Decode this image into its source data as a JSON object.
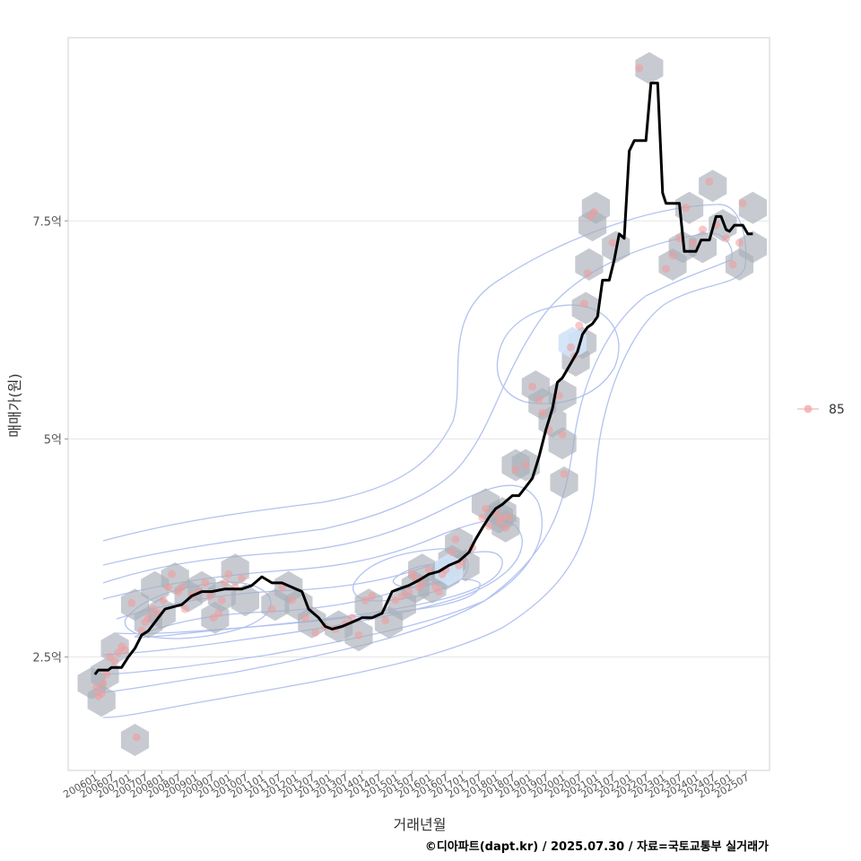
{
  "chart_data": {
    "type": "scatter",
    "xlabel": "거래년월",
    "ylabel": "매매가(원)",
    "caption": "©디아파트(dapt.kr) / 2025.07.30 / 자료=국토교통부 실거래가",
    "legend": {
      "position": "right",
      "entries": [
        "85"
      ]
    },
    "ylim": [
      1.2,
      9.6
    ],
    "xlim": [
      2005.2,
      2026.2
    ],
    "y_ticks": [
      {
        "value": 2.5,
        "label": "2.5억"
      },
      {
        "value": 5.0,
        "label": "5억"
      },
      {
        "value": 7.5,
        "label": "7.5억"
      }
    ],
    "x_ticks": [
      "200601",
      "200607",
      "200701",
      "200707",
      "200801",
      "200807",
      "200901",
      "200907",
      "201001",
      "201007",
      "201101",
      "201107",
      "201201",
      "201207",
      "201301",
      "201307",
      "201401",
      "201407",
      "201501",
      "201507",
      "201601",
      "201607",
      "201701",
      "201707",
      "201801",
      "201807",
      "201901",
      "201907",
      "202001",
      "202007",
      "202101",
      "202107",
      "202201",
      "202207",
      "202301",
      "202307",
      "202401",
      "202407",
      "202501",
      "202507"
    ],
    "grid": true,
    "series": [
      {
        "name": "85",
        "kind": "points",
        "points": [
          [
            2006.05,
            2.15
          ],
          [
            2006.1,
            2.05
          ],
          [
            2006.2,
            2.08
          ],
          [
            2006.25,
            2.2
          ],
          [
            2006.35,
            2.3
          ],
          [
            2006.45,
            2.5
          ],
          [
            2006.6,
            2.45
          ],
          [
            2006.7,
            2.55
          ],
          [
            2006.8,
            2.62
          ],
          [
            2006.9,
            2.58
          ],
          [
            2007.1,
            3.12
          ],
          [
            2007.25,
            1.58
          ],
          [
            2007.4,
            2.8
          ],
          [
            2007.5,
            2.9
          ],
          [
            2007.6,
            2.95
          ],
          [
            2007.75,
            3.05
          ],
          [
            2007.9,
            3.0
          ],
          [
            2008.05,
            3.15
          ],
          [
            2008.2,
            3.3
          ],
          [
            2008.3,
            3.45
          ],
          [
            2008.5,
            3.25
          ],
          [
            2008.6,
            3.3
          ],
          [
            2008.7,
            3.05
          ],
          [
            2008.9,
            3.2
          ],
          [
            2009.1,
            3.25
          ],
          [
            2009.3,
            3.35
          ],
          [
            2009.45,
            3.2
          ],
          [
            2009.55,
            2.95
          ],
          [
            2009.7,
            3.0
          ],
          [
            2009.8,
            3.15
          ],
          [
            2009.9,
            3.35
          ],
          [
            2010.0,
            3.45
          ],
          [
            2010.2,
            3.3
          ],
          [
            2010.4,
            3.4
          ],
          [
            2011.3,
            3.05
          ],
          [
            2011.6,
            3.3
          ],
          [
            2011.9,
            3.15
          ],
          [
            2012.3,
            2.95
          ],
          [
            2012.6,
            2.78
          ],
          [
            2012.9,
            2.85
          ],
          [
            2013.2,
            2.82
          ],
          [
            2013.5,
            2.88
          ],
          [
            2013.7,
            2.95
          ],
          [
            2013.9,
            2.75
          ],
          [
            2014.1,
            3.15
          ],
          [
            2014.3,
            3.2
          ],
          [
            2014.7,
            2.92
          ],
          [
            2015.0,
            3.15
          ],
          [
            2015.2,
            3.2
          ],
          [
            2015.4,
            3.25
          ],
          [
            2015.5,
            3.45
          ],
          [
            2015.6,
            3.4
          ],
          [
            2015.7,
            3.3
          ],
          [
            2015.8,
            3.35
          ],
          [
            2016.0,
            3.5
          ],
          [
            2016.2,
            3.3
          ],
          [
            2016.3,
            3.25
          ],
          [
            2016.4,
            3.45
          ],
          [
            2016.5,
            3.5
          ],
          [
            2016.7,
            3.7
          ],
          [
            2016.8,
            3.85
          ],
          [
            2016.9,
            3.55
          ],
          [
            2017.0,
            3.6
          ],
          [
            2017.3,
            3.75
          ],
          [
            2017.6,
            4.1
          ],
          [
            2017.7,
            4.2
          ],
          [
            2017.8,
            4.0
          ],
          [
            2018.0,
            4.15
          ],
          [
            2018.1,
            4.05
          ],
          [
            2018.2,
            4.1
          ],
          [
            2018.3,
            3.98
          ],
          [
            2018.4,
            4.1
          ],
          [
            2018.6,
            4.65
          ],
          [
            2018.9,
            4.7
          ],
          [
            2019.1,
            5.6
          ],
          [
            2019.3,
            5.45
          ],
          [
            2019.4,
            5.3
          ],
          [
            2019.6,
            5.1
          ],
          [
            2019.9,
            5.5
          ],
          [
            2020.0,
            5.05
          ],
          [
            2020.05,
            4.6
          ],
          [
            2020.25,
            6.05
          ],
          [
            2020.35,
            5.95
          ],
          [
            2020.5,
            6.3
          ],
          [
            2020.65,
            6.55
          ],
          [
            2020.75,
            6.9
          ],
          [
            2020.85,
            7.55
          ],
          [
            2020.95,
            7.6
          ],
          [
            2021.5,
            7.25
          ],
          [
            2022.3,
            9.25
          ],
          [
            2023.1,
            6.95
          ],
          [
            2023.3,
            7.1
          ],
          [
            2023.5,
            7.3
          ],
          [
            2023.7,
            7.65
          ],
          [
            2023.9,
            7.25
          ],
          [
            2024.2,
            7.4
          ],
          [
            2024.4,
            7.95
          ],
          [
            2024.6,
            7.45
          ],
          [
            2024.9,
            7.3
          ],
          [
            2025.1,
            7.0
          ],
          [
            2025.3,
            7.25
          ],
          [
            2025.4,
            7.7
          ]
        ]
      },
      {
        "name": "moving-average",
        "kind": "line",
        "points": [
          [
            2006.0,
            2.3
          ],
          [
            2006.1,
            2.35
          ],
          [
            2006.4,
            2.35
          ],
          [
            2006.5,
            2.38
          ],
          [
            2006.8,
            2.38
          ],
          [
            2007.0,
            2.5
          ],
          [
            2007.2,
            2.6
          ],
          [
            2007.4,
            2.75
          ],
          [
            2007.6,
            2.8
          ],
          [
            2007.9,
            2.95
          ],
          [
            2008.1,
            3.05
          ],
          [
            2008.4,
            3.08
          ],
          [
            2008.6,
            3.1
          ],
          [
            2008.9,
            3.2
          ],
          [
            2009.2,
            3.25
          ],
          [
            2009.5,
            3.25
          ],
          [
            2009.9,
            3.28
          ],
          [
            2010.2,
            3.28
          ],
          [
            2010.4,
            3.28
          ],
          [
            2010.7,
            3.32
          ],
          [
            2011.0,
            3.42
          ],
          [
            2011.3,
            3.35
          ],
          [
            2011.6,
            3.35
          ],
          [
            2011.9,
            3.3
          ],
          [
            2012.2,
            3.25
          ],
          [
            2012.4,
            3.05
          ],
          [
            2012.7,
            2.95
          ],
          [
            2012.9,
            2.85
          ],
          [
            2013.1,
            2.82
          ],
          [
            2013.4,
            2.85
          ],
          [
            2013.7,
            2.9
          ],
          [
            2014.0,
            2.95
          ],
          [
            2014.3,
            2.95
          ],
          [
            2014.6,
            3.0
          ],
          [
            2014.9,
            3.25
          ],
          [
            2015.1,
            3.28
          ],
          [
            2015.4,
            3.32
          ],
          [
            2015.7,
            3.38
          ],
          [
            2016.0,
            3.45
          ],
          [
            2016.3,
            3.48
          ],
          [
            2016.6,
            3.55
          ],
          [
            2016.9,
            3.6
          ],
          [
            2017.2,
            3.7
          ],
          [
            2017.4,
            3.85
          ],
          [
            2017.6,
            3.98
          ],
          [
            2017.8,
            4.1
          ],
          [
            2018.0,
            4.2
          ],
          [
            2018.2,
            4.25
          ],
          [
            2018.5,
            4.35
          ],
          [
            2018.7,
            4.35
          ],
          [
            2018.9,
            4.45
          ],
          [
            2019.1,
            4.55
          ],
          [
            2019.3,
            4.8
          ],
          [
            2019.5,
            5.1
          ],
          [
            2019.7,
            5.35
          ],
          [
            2019.85,
            5.65
          ],
          [
            2020.0,
            5.7
          ],
          [
            2020.15,
            5.8
          ],
          [
            2020.3,
            5.9
          ],
          [
            2020.45,
            6.0
          ],
          [
            2020.6,
            6.2
          ],
          [
            2020.75,
            6.28
          ],
          [
            2020.9,
            6.32
          ],
          [
            2021.05,
            6.4
          ],
          [
            2021.2,
            6.82
          ],
          [
            2021.4,
            6.82
          ],
          [
            2021.55,
            7.05
          ],
          [
            2021.7,
            7.35
          ],
          [
            2021.85,
            7.3
          ],
          [
            2022.0,
            8.3
          ],
          [
            2022.15,
            8.42
          ],
          [
            2022.5,
            8.42
          ],
          [
            2022.65,
            9.08
          ],
          [
            2022.85,
            9.08
          ],
          [
            2023.0,
            7.82
          ],
          [
            2023.1,
            7.7
          ],
          [
            2023.5,
            7.7
          ],
          [
            2023.65,
            7.15
          ],
          [
            2024.0,
            7.15
          ],
          [
            2024.15,
            7.28
          ],
          [
            2024.4,
            7.28
          ],
          [
            2024.6,
            7.55
          ],
          [
            2024.75,
            7.55
          ],
          [
            2024.9,
            7.4
          ],
          [
            2025.0,
            7.38
          ],
          [
            2025.15,
            7.45
          ],
          [
            2025.4,
            7.45
          ],
          [
            2025.55,
            7.35
          ],
          [
            2025.7,
            7.35
          ]
        ]
      }
    ],
    "hexbins": [
      [
        2005.9,
        2.2
      ],
      [
        2006.3,
        2.3
      ],
      [
        2006.6,
        2.6
      ],
      [
        2006.2,
        2.0
      ],
      [
        2007.2,
        3.1
      ],
      [
        2007.6,
        2.9
      ],
      [
        2008.0,
        3.0
      ],
      [
        2007.8,
        3.3
      ],
      [
        2008.4,
        3.4
      ],
      [
        2008.8,
        3.2
      ],
      [
        2009.2,
        3.3
      ],
      [
        2009.6,
        2.95
      ],
      [
        2009.8,
        3.2
      ],
      [
        2010.2,
        3.5
      ],
      [
        2010.5,
        3.15
      ],
      [
        2011.4,
        3.1
      ],
      [
        2011.8,
        3.3
      ],
      [
        2012.1,
        3.1
      ],
      [
        2012.5,
        2.9
      ],
      [
        2013.3,
        2.85
      ],
      [
        2013.9,
        2.75
      ],
      [
        2014.2,
        3.1
      ],
      [
        2014.8,
        2.9
      ],
      [
        2015.2,
        3.1
      ],
      [
        2015.6,
        3.3
      ],
      [
        2015.8,
        3.5
      ],
      [
        2016.1,
        3.3
      ],
      [
        2016.5,
        3.45
      ],
      [
        2016.7,
        3.6
      ],
      [
        2016.9,
        3.8
      ],
      [
        2017.1,
        3.55
      ],
      [
        2017.7,
        4.25
      ],
      [
        2018.1,
        4.1
      ],
      [
        2018.3,
        4.0
      ],
      [
        2018.6,
        4.7
      ],
      [
        2018.9,
        4.7
      ],
      [
        2019.2,
        5.6
      ],
      [
        2019.4,
        5.4
      ],
      [
        2019.7,
        5.2
      ],
      [
        2020.0,
        5.5
      ],
      [
        2020.0,
        4.95
      ],
      [
        2020.05,
        4.5
      ],
      [
        2020.4,
        5.9
      ],
      [
        2020.6,
        6.1
      ],
      [
        2020.7,
        6.5
      ],
      [
        2020.8,
        7.0
      ],
      [
        2020.9,
        7.45
      ],
      [
        2021.0,
        7.65
      ],
      [
        2021.6,
        7.2
      ],
      [
        2022.6,
        9.25
      ],
      [
        2023.3,
        7.0
      ],
      [
        2023.6,
        7.2
      ],
      [
        2023.8,
        7.65
      ],
      [
        2024.2,
        7.2
      ],
      [
        2024.5,
        7.9
      ],
      [
        2024.8,
        7.45
      ],
      [
        2025.3,
        7.0
      ],
      [
        2025.7,
        7.2
      ],
      [
        2025.7,
        7.65
      ],
      [
        2007.2,
        1.55
      ],
      [
        2020.3,
        6.1
      ],
      [
        2016.6,
        3.5
      ],
      [
        2018.2,
        4.15
      ]
    ]
  }
}
